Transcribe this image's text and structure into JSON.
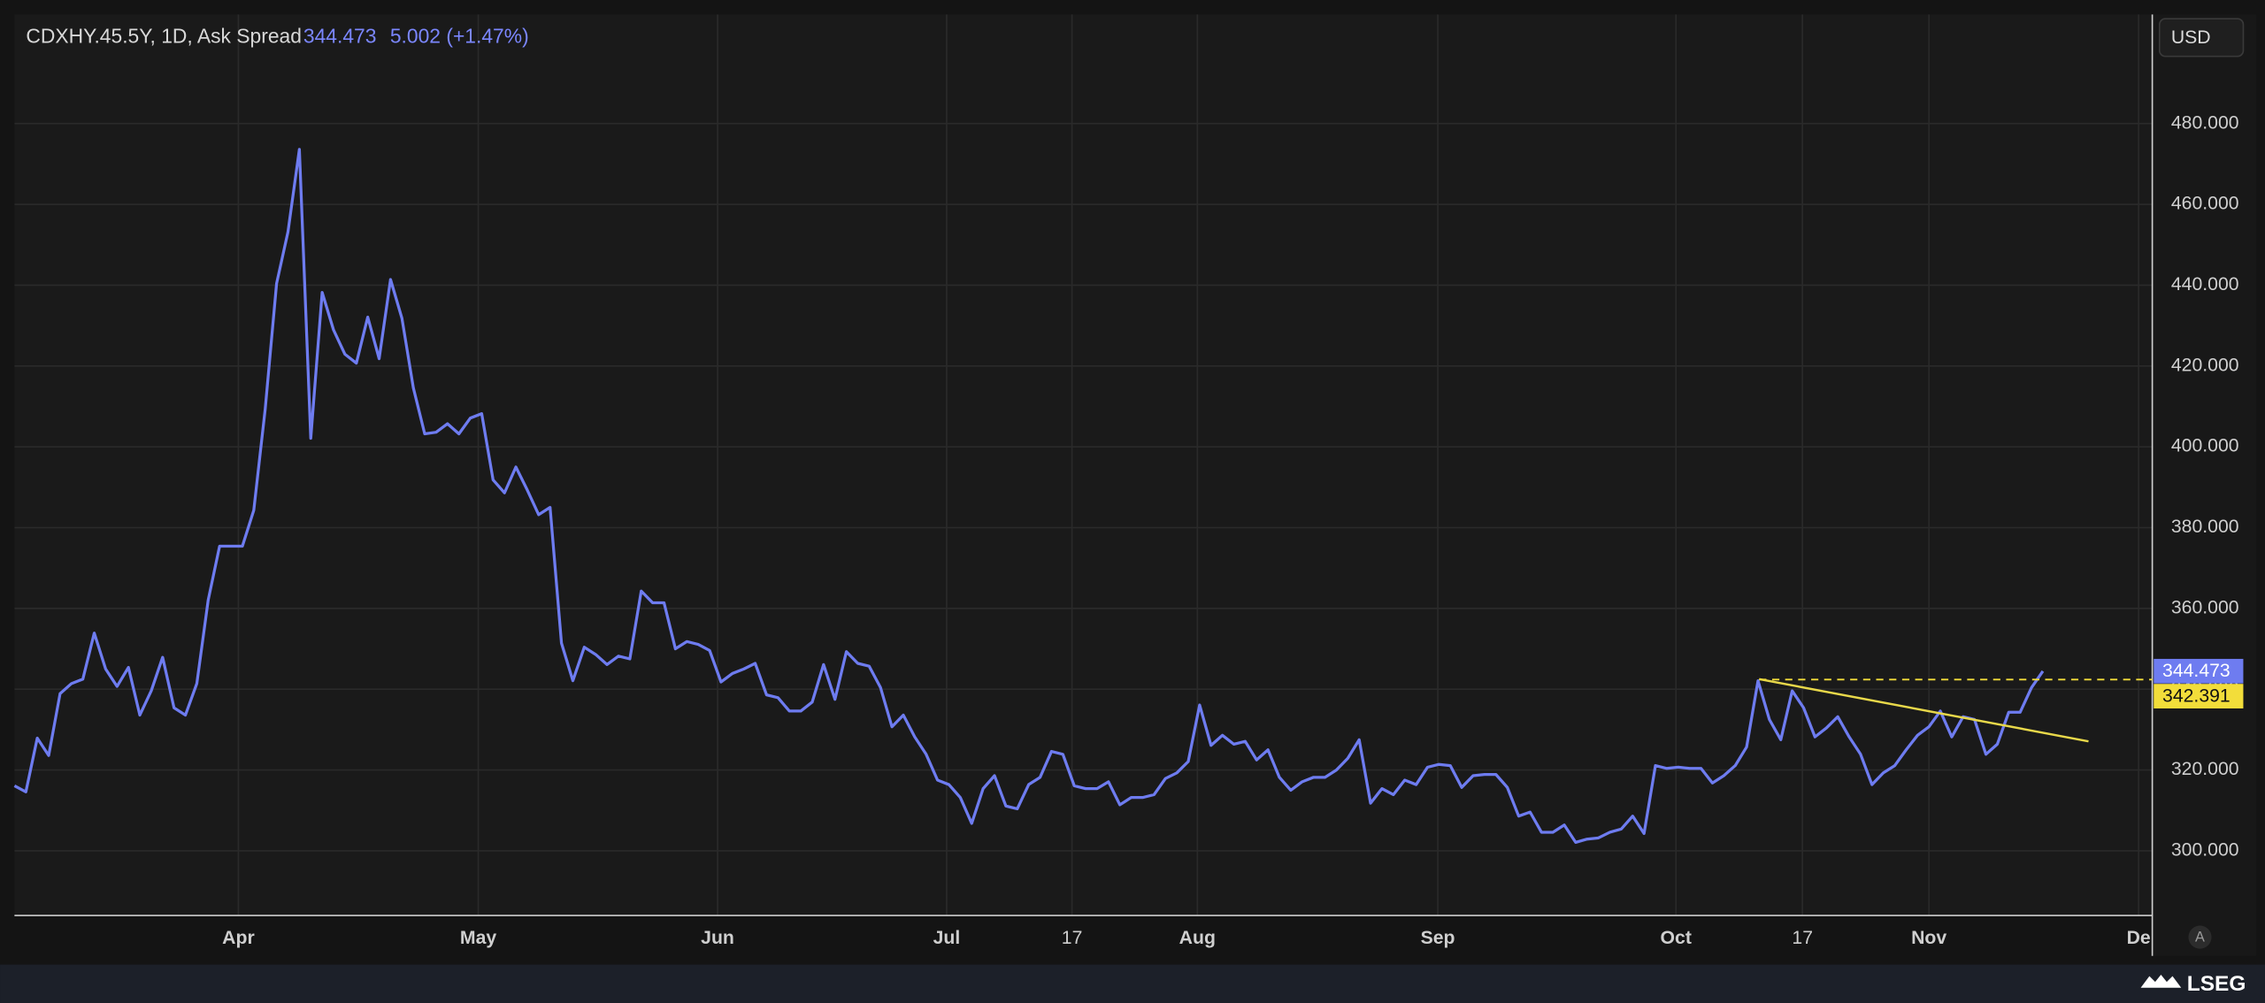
{
  "chart_data": {
    "type": "line",
    "title": "CDXHY.45.5Y, 1D, Ask Spread",
    "last_value": "344.473",
    "change": "5.002 (+1.47%)",
    "currency": "USD",
    "scale_button": "A",
    "brand": "LSEG",
    "xlim": [
      0,
      187.6
    ],
    "ylim": [
      284,
      507
    ],
    "grid": true,
    "xticks": [
      {
        "value": 19.65,
        "label": "Apr"
      },
      {
        "value": 40.7,
        "label": "May"
      },
      {
        "value": 61.7,
        "label": "Jun"
      },
      {
        "value": 81.8,
        "label": "Jul"
      },
      {
        "value": 92.8,
        "label": "17"
      },
      {
        "value": 103.8,
        "label": "Aug"
      },
      {
        "value": 124.9,
        "label": "Sep"
      },
      {
        "value": 145.8,
        "label": "Oct"
      },
      {
        "value": 156.9,
        "label": "17"
      },
      {
        "value": 168.0,
        "label": "Nov"
      },
      {
        "value": 186.4,
        "label": "De"
      }
    ],
    "yticks": [
      {
        "value": 300,
        "label": "300.000"
      },
      {
        "value": 320,
        "label": "320.000"
      },
      {
        "value": 340,
        "label": "340.000"
      },
      {
        "value": 360,
        "label": "360.000"
      },
      {
        "value": 380,
        "label": "380.000"
      },
      {
        "value": 400,
        "label": "400.000"
      },
      {
        "value": 420,
        "label": "420.000"
      },
      {
        "value": 440,
        "label": "440.000"
      },
      {
        "value": 460,
        "label": "460.000"
      },
      {
        "value": 480,
        "label": "480.000"
      }
    ],
    "series": [
      {
        "name": "CDXHY.45.5Y",
        "color": "#6e7cf0",
        "x": [
          0,
          1,
          2,
          3,
          4,
          5,
          6,
          7,
          8,
          9,
          10,
          11,
          12,
          13,
          14,
          15,
          16,
          17,
          18,
          19,
          20,
          21,
          22,
          23,
          24,
          25,
          26,
          27,
          28,
          29,
          30,
          31,
          32,
          33,
          34,
          35,
          36,
          37,
          38,
          39,
          40,
          41,
          42,
          43,
          44,
          45,
          46,
          47,
          48,
          49,
          50,
          51,
          52,
          53,
          54,
          55,
          56,
          57,
          58,
          59,
          60,
          61,
          62,
          63,
          64,
          65,
          66,
          67,
          68,
          69,
          70,
          71,
          72,
          73,
          74,
          75,
          76,
          77,
          78,
          79,
          80,
          81,
          82,
          83,
          84,
          85,
          86,
          87,
          88,
          89,
          90,
          91,
          92,
          93,
          94,
          95,
          96,
          97,
          98,
          99,
          100,
          101,
          102,
          103,
          104,
          105,
          106,
          107,
          108,
          109,
          110,
          111,
          112,
          113,
          114,
          115,
          116,
          117,
          118,
          119,
          120,
          121,
          122,
          123,
          124,
          125,
          126,
          127,
          128,
          129,
          130,
          131,
          132,
          133,
          134,
          135,
          136,
          137,
          138,
          139,
          140,
          141,
          142,
          143,
          144,
          145,
          146,
          147,
          148,
          149,
          150,
          151,
          152,
          153,
          154,
          155,
          156,
          157,
          158,
          159,
          160,
          161,
          162,
          163,
          164,
          165,
          166,
          167,
          168,
          169,
          170,
          171,
          172,
          173,
          174,
          175,
          176,
          177,
          178
        ],
        "values": [
          316.1,
          314.6,
          327.9,
          323.6,
          338.9,
          341.4,
          342.5,
          353.9,
          345.0,
          340.7,
          345.4,
          333.6,
          339.6,
          347.9,
          335.4,
          333.6,
          341.4,
          362.1,
          375.4,
          375.4,
          375.4,
          384.3,
          409.3,
          440.4,
          453.2,
          473.6,
          402.1,
          438.2,
          428.9,
          422.9,
          420.7,
          432.1,
          421.8,
          441.4,
          431.8,
          414.6,
          403.2,
          403.6,
          405.7,
          403.2,
          407.1,
          408.2,
          391.8,
          388.6,
          395.0,
          389.3,
          383.2,
          385.0,
          351.4,
          342.1,
          350.4,
          348.6,
          346.1,
          348.2,
          347.5,
          364.3,
          361.4,
          361.4,
          350.0,
          351.8,
          351.1,
          349.6,
          341.8,
          343.9,
          345.0,
          346.4,
          338.6,
          337.9,
          334.6,
          334.6,
          336.8,
          346.1,
          337.5,
          349.3,
          346.4,
          345.7,
          340.4,
          330.7,
          333.6,
          328.2,
          323.9,
          317.5,
          316.4,
          313.2,
          306.8,
          315.4,
          318.6,
          311.1,
          310.4,
          316.4,
          318.2,
          324.6,
          323.9,
          316.1,
          315.4,
          315.4,
          317.1,
          311.4,
          313.2,
          313.2,
          313.9,
          317.9,
          319.3,
          322.1,
          336.1,
          326.1,
          328.6,
          326.4,
          327.1,
          322.5,
          325.0,
          318.2,
          315.0,
          317.1,
          318.2,
          318.2,
          320.0,
          322.9,
          327.5,
          311.8,
          315.4,
          313.9,
          317.5,
          316.4,
          320.7,
          321.4,
          321.1,
          315.7,
          318.6,
          318.9,
          318.9,
          315.7,
          308.6,
          309.6,
          304.6,
          304.6,
          306.4,
          302.1,
          302.9,
          303.2,
          304.6,
          305.4,
          308.6,
          304.3,
          321.1,
          320.4,
          320.7,
          320.4,
          320.4,
          316.8,
          318.6,
          321.1,
          325.7,
          342.1,
          332.5,
          327.5,
          339.6,
          335.4,
          328.2,
          330.4,
          333.2,
          328.2,
          323.9,
          316.4,
          319.3,
          321.1,
          325.0,
          328.6,
          330.7,
          334.6,
          328.2,
          333.2,
          332.5,
          323.9,
          326.4,
          334.3,
          334.3,
          340.4,
          344.473
        ],
        "value_label": "344.473"
      }
    ],
    "trendline": {
      "color": "#e8d84a",
      "x": [
        153.1,
        182.0
      ],
      "values": [
        342.5,
        327.1
      ]
    },
    "level": {
      "color": "#f2dd3a",
      "x_start": 153.1,
      "value": 342.391,
      "label": "342.391"
    }
  }
}
